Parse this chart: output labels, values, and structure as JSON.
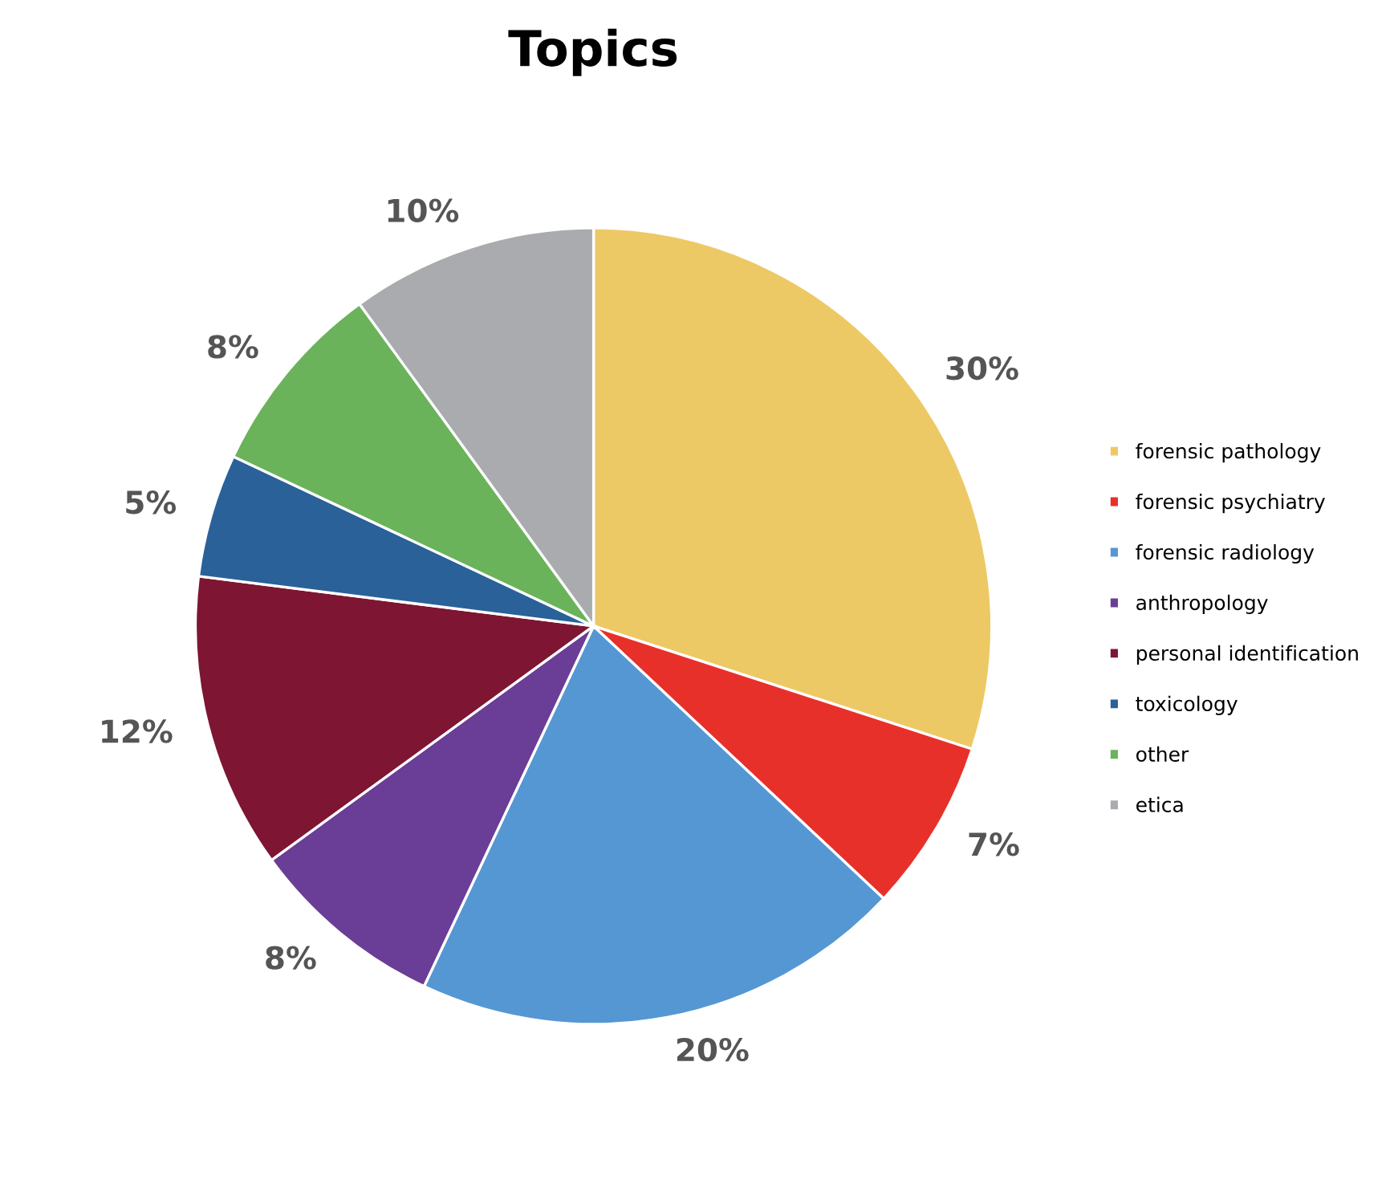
{
  "chart_data": {
    "type": "pie",
    "title": "Topics",
    "categories": [
      "forensic pathology",
      "forensic psychiatry",
      "forensic radiology",
      "anthropology",
      "personal identification",
      "toxicology",
      "other",
      "etica"
    ],
    "values": [
      30,
      7,
      20,
      8,
      12,
      5,
      8,
      10
    ],
    "value_labels": [
      "30%",
      "7%",
      "20%",
      "8%",
      "12%",
      "5%",
      "8%",
      "10%"
    ],
    "colors": [
      "#edc966",
      "#e8302a",
      "#5597d3",
      "#6a3d96",
      "#7d1533",
      "#2a6199",
      "#6ab35a",
      "#a9abae"
    ],
    "legend": "right"
  }
}
